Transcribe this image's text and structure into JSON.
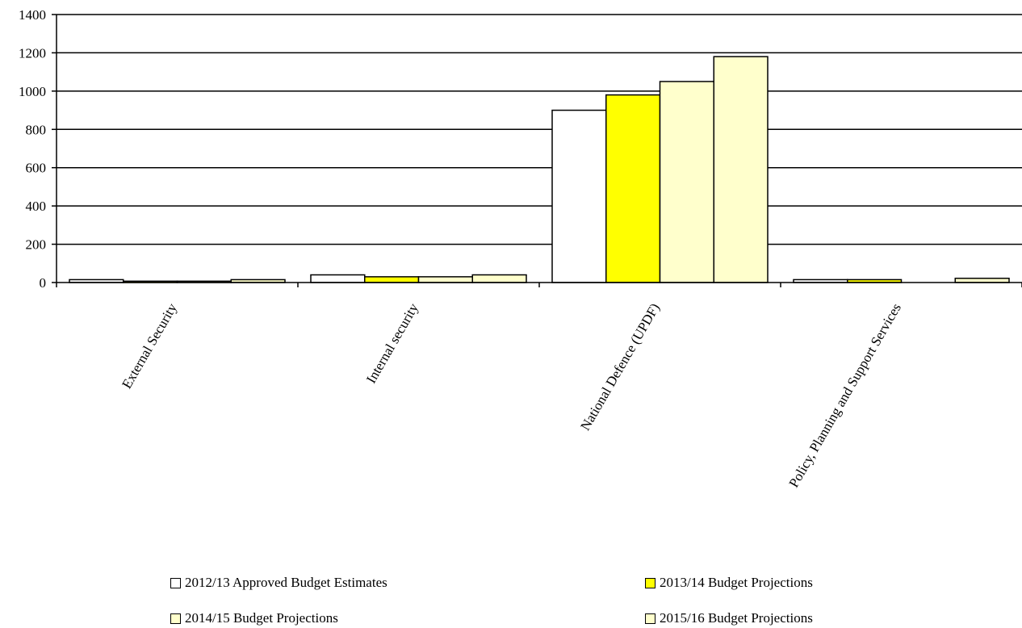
{
  "chart_data": {
    "type": "bar",
    "categories": [
      "External Security",
      "Internal security",
      "National Defence (UPDF)",
      "Policy, Planning and Support Services"
    ],
    "series": [
      {
        "name": "2012/13 Approved Budget Estimates",
        "color": "#ffffff",
        "values": [
          15,
          40,
          900,
          15
        ]
      },
      {
        "name": "2013/14 Budget Projections",
        "color": "#ffff00",
        "values": [
          7,
          30,
          980,
          15
        ]
      },
      {
        "name": "2014/15 Budget Projections",
        "color": "#ffffcc",
        "values": [
          7,
          30,
          1050,
          0
        ]
      },
      {
        "name": "2015/16 Budget Projections",
        "color": "#ffffcc",
        "values": [
          15,
          40,
          1180,
          22
        ]
      }
    ],
    "yticks": [
      0,
      200,
      400,
      600,
      800,
      1000,
      1200,
      1400
    ],
    "ylim": [
      0,
      1400
    ],
    "grid": true,
    "legend_position": "bottom"
  }
}
